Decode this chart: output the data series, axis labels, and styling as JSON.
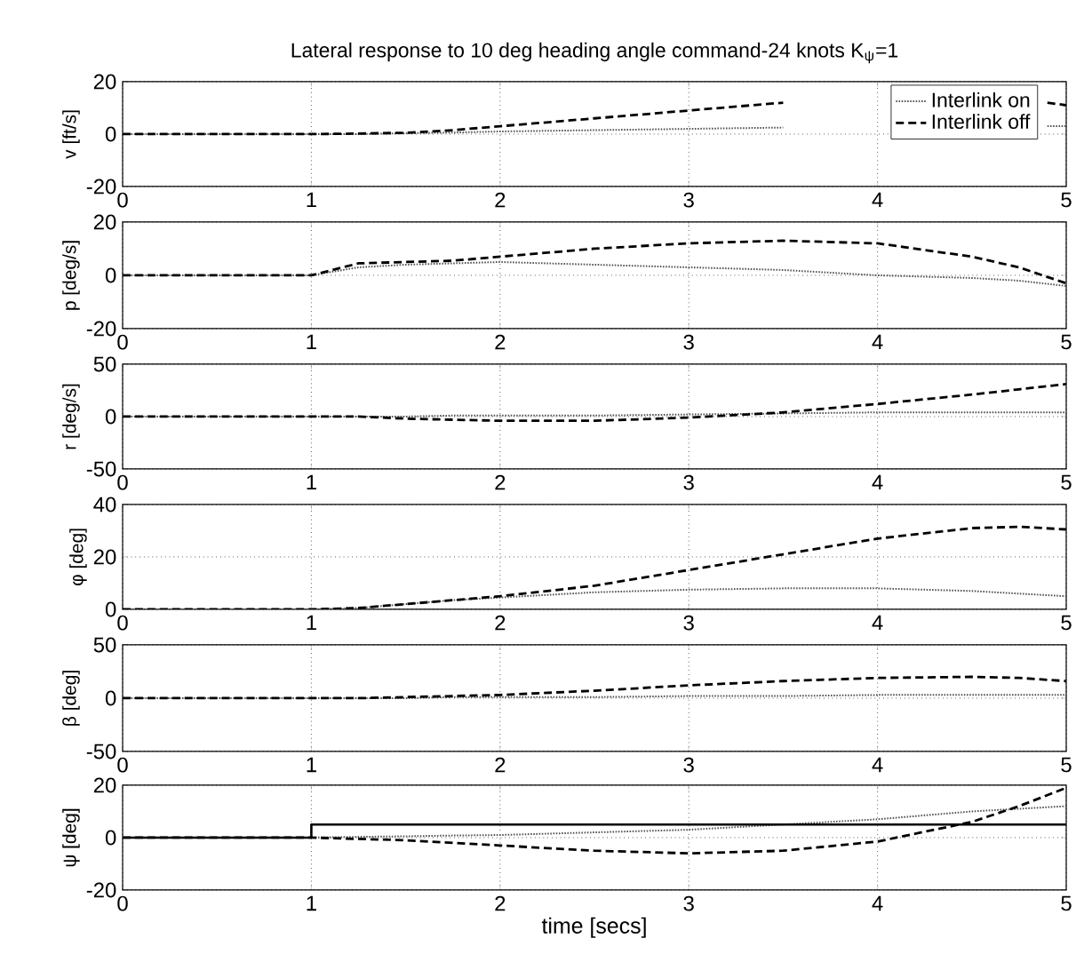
{
  "chart_data": [
    {
      "type": "line",
      "title": "Lateral response to 10 deg heading angle command-24 knots K$_{ψ}$=1",
      "ylabel": "v  [ft/s]",
      "x": [
        0,
        0.5,
        1,
        1.25,
        1.5,
        1.75,
        2,
        2.5,
        3,
        3.5,
        3.75,
        4.9,
        5
      ],
      "xlim": [
        0,
        5
      ],
      "ylim": [
        -20,
        20
      ],
      "xticks": [
        0,
        1,
        2,
        3,
        4,
        5
      ],
      "yticks": [
        -20,
        0,
        20
      ],
      "grid": true,
      "legend": "top right",
      "series": [
        {
          "name": "Interlink on",
          "color": "#555555",
          "line_style": "dotted",
          "values": [
            0,
            0,
            0,
            0,
            0.3,
            0.6,
            1,
            1.5,
            2,
            2.5,
            null,
            3,
            3
          ]
        },
        {
          "name": "Interlink off",
          "color": "#000000",
          "line_style": "dashed",
          "values": [
            0,
            0,
            0,
            0.2,
            0.5,
            1.5,
            3,
            6,
            9,
            12,
            null,
            12,
            11
          ]
        }
      ]
    },
    {
      "type": "line",
      "ylabel": "p  [deg/s]",
      "x": [
        0,
        0.5,
        1,
        1.25,
        1.5,
        1.75,
        2,
        2.5,
        3,
        3.5,
        4,
        4.5,
        4.75,
        5
      ],
      "xlim": [
        0,
        5
      ],
      "ylim": [
        -20,
        20
      ],
      "xticks": [
        0,
        1,
        2,
        3,
        4,
        5
      ],
      "yticks": [
        -20,
        0,
        20
      ],
      "grid": true,
      "series": [
        {
          "color": "#555555",
          "line_style": "dotted",
          "values": [
            0,
            0,
            0,
            3,
            4,
            4.5,
            5,
            4,
            3,
            2,
            0,
            -1,
            -2,
            -4
          ]
        },
        {
          "color": "#000000",
          "line_style": "dashed",
          "values": [
            0,
            0,
            0,
            4.5,
            5,
            5.5,
            7,
            10,
            12,
            13,
            12,
            7,
            3,
            -3
          ]
        }
      ]
    },
    {
      "type": "line",
      "ylabel": "r  [deg/s]",
      "x": [
        0,
        0.5,
        1,
        1.25,
        1.5,
        1.75,
        2,
        2.5,
        3,
        3.5,
        4,
        4.5,
        4.75,
        5
      ],
      "xlim": [
        0,
        5
      ],
      "ylim": [
        -50,
        50
      ],
      "xticks": [
        0,
        1,
        2,
        3,
        4,
        5
      ],
      "yticks": [
        -50,
        0,
        50
      ],
      "grid": true,
      "series": [
        {
          "color": "#555555",
          "line_style": "dotted",
          "values": [
            0,
            0,
            0,
            0,
            0,
            1,
            1,
            1,
            2,
            3,
            4,
            4,
            4,
            4
          ]
        },
        {
          "color": "#000000",
          "line_style": "dashed",
          "values": [
            0,
            0,
            0,
            0,
            -2,
            -3,
            -4,
            -4,
            -1,
            4,
            12,
            21,
            26,
            31
          ]
        }
      ]
    },
    {
      "type": "line",
      "ylabel": "φ  [deg]",
      "x": [
        0,
        0.5,
        1,
        1.25,
        1.5,
        1.75,
        2,
        2.5,
        3,
        3.5,
        4,
        4.5,
        4.75,
        5
      ],
      "xlim": [
        0,
        5
      ],
      "ylim": [
        0,
        40
      ],
      "xticks": [
        0,
        1,
        2,
        3,
        4,
        5
      ],
      "yticks": [
        0,
        20,
        40
      ],
      "grid": true,
      "series": [
        {
          "color": "#555555",
          "line_style": "dotted",
          "values": [
            0,
            0,
            0,
            0.5,
            2,
            3.5,
            4.5,
            6.5,
            7.5,
            8,
            8,
            7,
            6,
            5
          ]
        },
        {
          "color": "#000000",
          "line_style": "dashed",
          "values": [
            0,
            0,
            0,
            0.5,
            2,
            3.5,
            5,
            9,
            15,
            21,
            27,
            31,
            31.5,
            30.5
          ]
        }
      ]
    },
    {
      "type": "line",
      "ylabel": "β  [deg]",
      "x": [
        0,
        0.5,
        1,
        1.25,
        1.5,
        1.75,
        2,
        2.5,
        3,
        3.5,
        4,
        4.5,
        4.75,
        5
      ],
      "xlim": [
        0,
        5
      ],
      "ylim": [
        -50,
        50
      ],
      "xticks": [
        0,
        1,
        2,
        3,
        4,
        5
      ],
      "yticks": [
        -50,
        0,
        50
      ],
      "grid": true,
      "series": [
        {
          "color": "#555555",
          "line_style": "dotted",
          "values": [
            0,
            0,
            0,
            0,
            0,
            1,
            1,
            1,
            2,
            2,
            3,
            3,
            3,
            3
          ]
        },
        {
          "color": "#000000",
          "line_style": "dashed",
          "values": [
            0,
            0,
            0,
            0,
            1,
            2,
            3,
            7,
            12,
            16,
            19,
            20,
            19,
            16
          ]
        }
      ]
    },
    {
      "type": "line",
      "ylabel": "ψ  [deg]",
      "xlabel": "time [secs]",
      "x": [
        0,
        0.5,
        1,
        1.25,
        1.5,
        1.75,
        2,
        2.5,
        3,
        3.5,
        4,
        4.5,
        4.75,
        5
      ],
      "xlim": [
        0,
        5
      ],
      "ylim": [
        -20,
        20
      ],
      "xticks": [
        0,
        1,
        2,
        3,
        4,
        5
      ],
      "yticks": [
        -20,
        0,
        20
      ],
      "grid": true,
      "series": [
        {
          "color": "#555555",
          "line_style": "dotted",
          "values": [
            0,
            0,
            0,
            0.3,
            0.5,
            0.8,
            1,
            2,
            3,
            5,
            7,
            10,
            11,
            12
          ]
        },
        {
          "color": "#000000",
          "line_style": "dashed",
          "values": [
            0,
            0,
            0,
            -0.5,
            -1,
            -2,
            -3,
            -5,
            -6,
            -5,
            -1.5,
            6,
            12,
            19
          ]
        },
        {
          "color": "#000000",
          "line_style": "solid",
          "x": [
            0,
            1,
            1,
            5
          ],
          "values": [
            0,
            0,
            5,
            5
          ]
        }
      ]
    }
  ]
}
